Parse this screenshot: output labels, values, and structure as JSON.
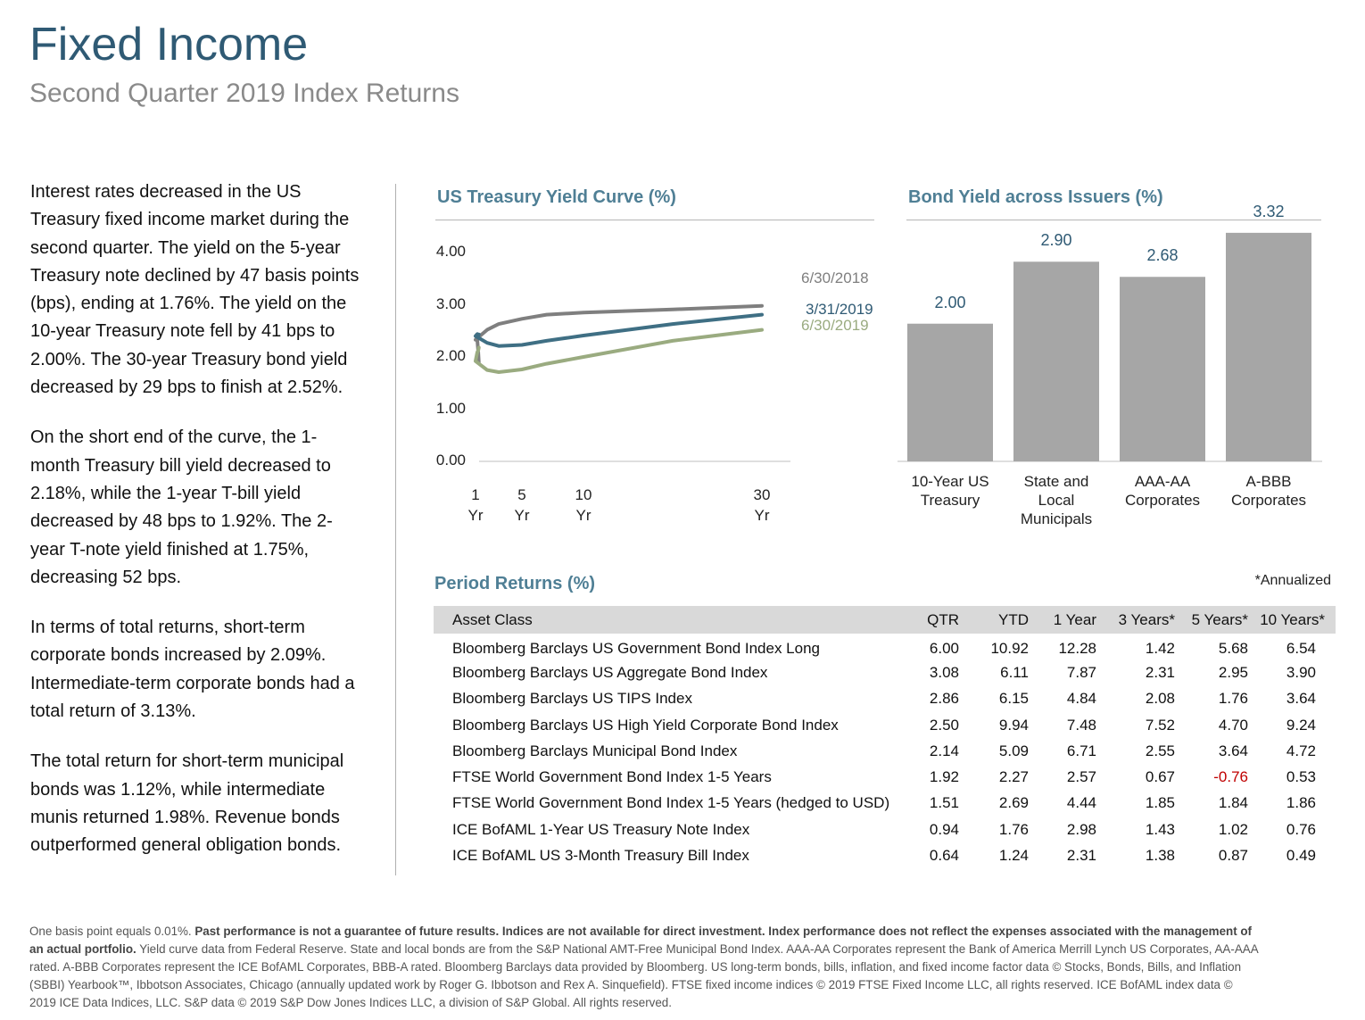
{
  "header": {
    "title": "Fixed Income",
    "subtitle": "Second Quarter 2019 Index Returns"
  },
  "narrative": {
    "paragraphs": [
      "Interest rates decreased in the US Treasury fixed income market during the second quarter. The yield on the 5-year Treasury note declined by 47 basis points (bps), ending at 1.76%. The yield on the 10-year Treasury note fell by 41 bps to 2.00%. The 30-year Treasury bond yield decreased by 29 bps to finish at 2.52%.",
      "On the short end of the curve, the 1-month Treasury bill yield decreased to 2.18%, while the 1-year T-bill yield decreased by 48 bps to 1.92%. The 2-year T-note yield finished at 1.75%, decreasing 52 bps.",
      "In terms of total returns, short-term corporate bonds increased by 2.09%. Intermediate-term corporate bonds had a total return of 3.13%.",
      "The total return for short-term municipal bonds was 1.12%, while intermediate munis returned 1.98%. Revenue bonds outperformed general obligation bonds."
    ]
  },
  "chart_data": [
    {
      "type": "line",
      "title": "US Treasury Yield Curve (%)",
      "y_ticks": [
        "4.00",
        "3.00",
        "2.00",
        "1.00",
        "0.00"
      ],
      "ylim": [
        0,
        4
      ],
      "x_tick_labels": [
        {
          "top": "1",
          "bottom": "Yr",
          "x": 1
        },
        {
          "top": "5",
          "bottom": "Yr",
          "x": 5
        },
        {
          "top": "10",
          "bottom": "Yr",
          "x": 10
        },
        {
          "top": "30",
          "bottom": "Yr",
          "x": 30
        }
      ],
      "grid": false,
      "series": [
        {
          "name": "6/30/2018",
          "color": "#7f7f7f",
          "points": [
            [
              0.083,
              1.9
            ],
            [
              0.25,
              2.11
            ],
            [
              0.5,
              2.33
            ],
            [
              1,
              2.33
            ],
            [
              2,
              2.52
            ],
            [
              3,
              2.63
            ],
            [
              5,
              2.73
            ],
            [
              7,
              2.81
            ],
            [
              10,
              2.85
            ],
            [
              20,
              2.91
            ],
            [
              30,
              2.98
            ]
          ]
        },
        {
          "name": "3/31/2019",
          "color": "#3f6f84",
          "points": [
            [
              0.083,
              2.43
            ],
            [
              0.25,
              2.4
            ],
            [
              0.5,
              2.44
            ],
            [
              1,
              2.4
            ],
            [
              2,
              2.27
            ],
            [
              3,
              2.21
            ],
            [
              5,
              2.23
            ],
            [
              7,
              2.31
            ],
            [
              10,
              2.41
            ],
            [
              20,
              2.63
            ],
            [
              30,
              2.81
            ]
          ]
        },
        {
          "name": "6/30/2019",
          "color": "#9aab80",
          "points": [
            [
              0.083,
              2.18
            ],
            [
              0.25,
              2.12
            ],
            [
              0.5,
              2.09
            ],
            [
              1,
              1.92
            ],
            [
              2,
              1.75
            ],
            [
              3,
              1.71
            ],
            [
              5,
              1.76
            ],
            [
              7,
              1.87
            ],
            [
              10,
              2.0
            ],
            [
              20,
              2.31
            ],
            [
              30,
              2.52
            ]
          ]
        }
      ]
    },
    {
      "type": "bar",
      "title": "Bond Yield across Issuers (%)",
      "categories": [
        "10-Year US Treasury",
        "State and Local Municipals",
        "AAA-AA Corporates",
        "A-BBB Corporates"
      ],
      "category_lines": [
        [
          "10-Year US",
          "Treasury"
        ],
        [
          "State and",
          "Local",
          "Municipals"
        ],
        [
          "AAA-AA",
          "Corporates"
        ],
        [
          "A-BBB",
          "Corporates"
        ]
      ],
      "values": [
        2.0,
        2.9,
        2.68,
        3.32
      ],
      "value_labels": [
        "2.00",
        "2.90",
        "2.68",
        "3.32"
      ],
      "bar_color": "#a6a6a6",
      "ylim": [
        0,
        3.5
      ]
    },
    {
      "type": "table",
      "title": "Period Returns (%)",
      "note": "*Annualized",
      "columns": [
        "Asset Class",
        "QTR",
        "YTD",
        "1 Year",
        "3 Years*",
        "5 Years*",
        "10 Years*"
      ],
      "rows": [
        [
          "Bloomberg Barclays US Government Bond Index Long",
          "6.00",
          "10.92",
          "12.28",
          "1.42",
          "5.68",
          "6.54"
        ],
        [
          "Bloomberg Barclays US Aggregate Bond Index",
          "3.08",
          "6.11",
          "7.87",
          "2.31",
          "2.95",
          "3.90"
        ],
        [
          "Bloomberg Barclays US TIPS Index",
          "2.86",
          "6.15",
          "4.84",
          "2.08",
          "1.76",
          "3.64"
        ],
        [
          "Bloomberg Barclays US High Yield Corporate Bond Index",
          "2.50",
          "9.94",
          "7.48",
          "7.52",
          "4.70",
          "9.24"
        ],
        [
          "Bloomberg Barclays Municipal Bond Index",
          "2.14",
          "5.09",
          "6.71",
          "2.55",
          "3.64",
          "4.72"
        ],
        [
          "FTSE World Government Bond Index 1-5 Years",
          "1.92",
          "2.27",
          "2.57",
          "0.67",
          "-0.76",
          "0.53"
        ],
        [
          "FTSE World Government Bond Index 1-5 Years (hedged to USD)",
          "1.51",
          "2.69",
          "4.44",
          "1.85",
          "1.84",
          "1.86"
        ],
        [
          "ICE BofAML 1-Year US Treasury Note Index",
          "0.94",
          "1.76",
          "2.98",
          "1.43",
          "1.02",
          "0.76"
        ],
        [
          "ICE BofAML US 3-Month Treasury Bill Index",
          "0.64",
          "1.24",
          "2.31",
          "1.38",
          "0.87",
          "0.49"
        ]
      ],
      "negative_color": "#c00000"
    }
  ],
  "footnote": {
    "lead": "One basis point equals 0.01%. ",
    "bold": "Past performance is not a guarantee of future results. Indices are not available for direct investment. Index performance does not reflect the expenses associated with the management of an actual portfolio.",
    "rest": " Yield curve data from Federal Reserve. State and local bonds are from the S&P National AMT-Free Municipal Bond Index. AAA-AA Corporates represent the Bank of America Merrill Lynch US Corporates, AA-AAA rated. A-BBB Corporates represent the ICE BofAML Corporates, BBB-A rated. Bloomberg Barclays data provided by Bloomberg.  US long-term bonds, bills, inflation, and fixed income factor data © Stocks, Bonds, Bills, and Inflation (SBBI) Yearbook™, Ibbotson Associates, Chicago (annually updated work by Roger G. Ibbotson and Rex A. Sinquefield). FTSE fixed income indices © 2019 FTSE Fixed Income LLC, all rights reserved. ICE BofAML index data © 2019 ICE Data Indices, LLC. S&P data © 2019 S&P Dow Jones Indices LLC, a division of S&P Global. All rights reserved."
  }
}
